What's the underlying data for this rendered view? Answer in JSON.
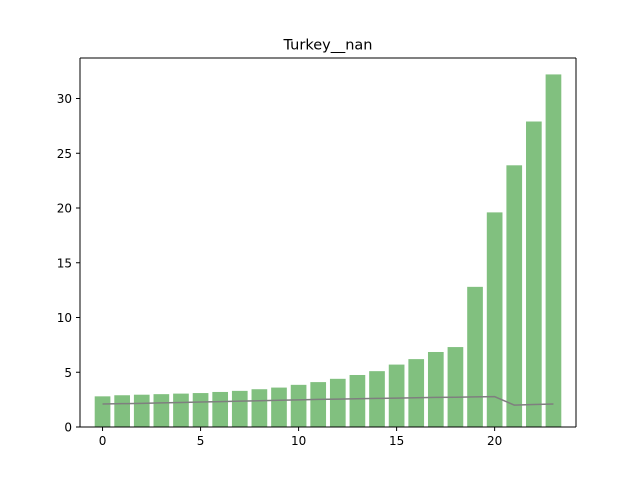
{
  "chart_data": {
    "type": "bar",
    "title": "Turkey__nan",
    "xlabel": "",
    "ylabel": "",
    "xlim": [
      -1.15,
      24.15
    ],
    "ylim": [
      0,
      33.7
    ],
    "xticks": [
      0,
      5,
      10,
      15,
      20
    ],
    "yticks": [
      0,
      5,
      10,
      15,
      20,
      25,
      30
    ],
    "grid": false,
    "x": [
      0,
      1,
      2,
      3,
      4,
      5,
      6,
      7,
      8,
      9,
      10,
      11,
      12,
      13,
      14,
      15,
      16,
      17,
      18,
      19,
      20,
      21,
      22,
      23
    ],
    "series": [
      {
        "type": "bar",
        "color": "#81c07f",
        "values": [
          2.8,
          2.9,
          2.95,
          3.0,
          3.05,
          3.1,
          3.2,
          3.3,
          3.45,
          3.6,
          3.85,
          4.1,
          4.4,
          4.75,
          5.1,
          5.7,
          6.2,
          6.85,
          7.3,
          12.8,
          19.6,
          23.9,
          27.9,
          32.2
        ]
      },
      {
        "type": "line",
        "color": "#7f7f7f",
        "values": [
          2.1,
          2.13,
          2.16,
          2.2,
          2.24,
          2.28,
          2.32,
          2.36,
          2.4,
          2.44,
          2.48,
          2.52,
          2.55,
          2.58,
          2.61,
          2.64,
          2.67,
          2.7,
          2.72,
          2.75,
          2.77,
          2.0,
          2.05,
          2.1
        ]
      }
    ]
  }
}
